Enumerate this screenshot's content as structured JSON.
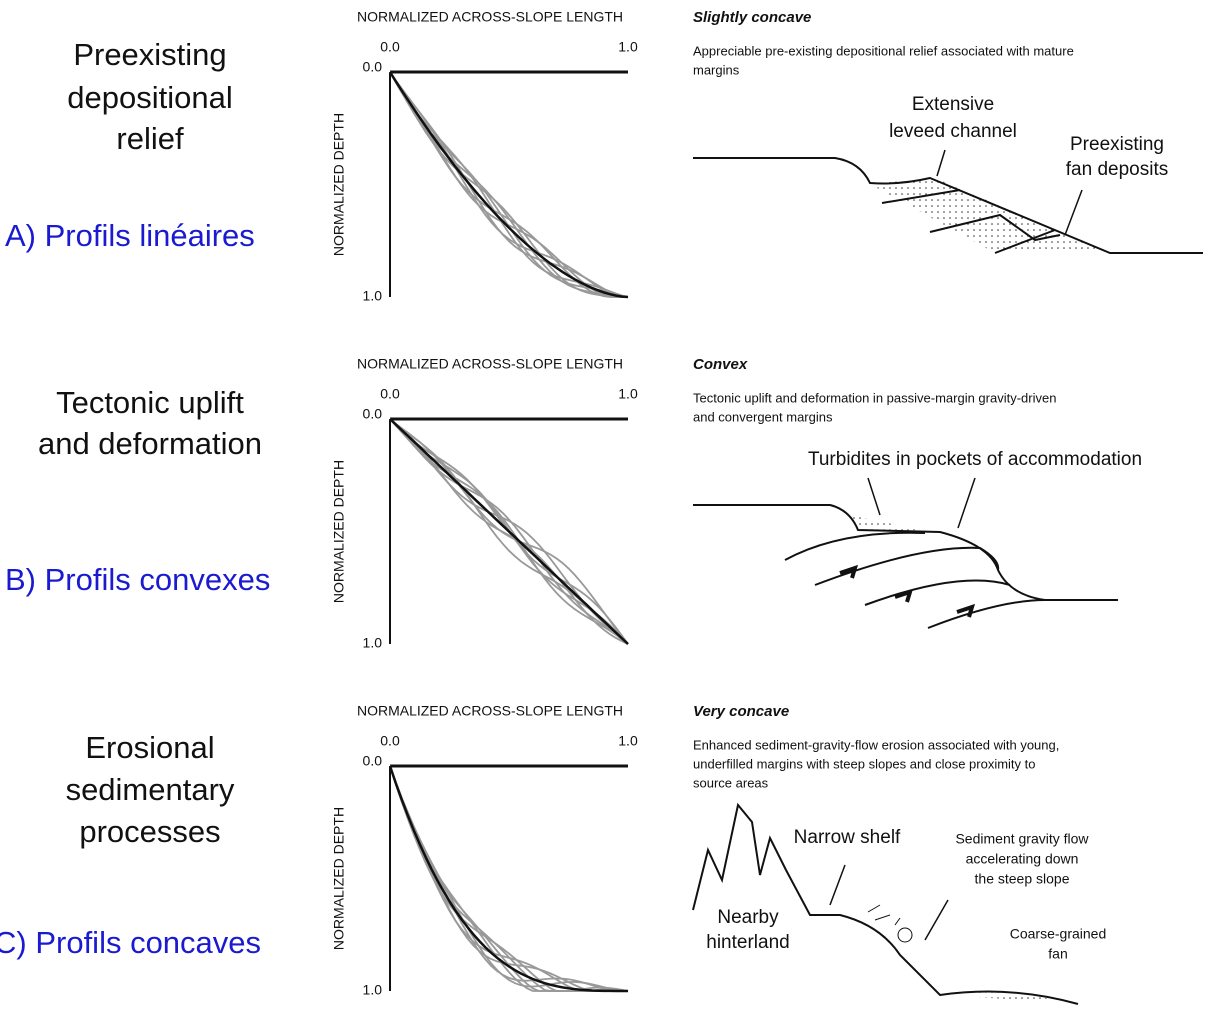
{
  "panels": [
    {
      "title_lines": [
        "Preexisting",
        "depositional",
        "relief"
      ],
      "label": "A) Profils linéaires",
      "chart": {
        "x_axis_title": "NORMALIZED ACROSS-SLOPE LENGTH",
        "x_ticks": [
          "0.0",
          "1.0"
        ],
        "y_axis_title": "NORMALIZED DEPTH",
        "y_ticks": [
          "0.0",
          "1.0"
        ]
      },
      "profile_type": "Slightly concave",
      "description": [
        "Appreciable pre-existing depositional relief associated with mature",
        "margins"
      ],
      "annotations": [
        {
          "lines": [
            "Extensive",
            "leveed channel"
          ]
        },
        {
          "lines": [
            "Preexisting",
            "fan deposits"
          ]
        }
      ]
    },
    {
      "title_lines": [
        "Tectonic uplift",
        "and deformation"
      ],
      "label": "B) Profils convexes",
      "chart": {
        "x_axis_title": "NORMALIZED ACROSS-SLOPE LENGTH",
        "x_ticks": [
          "0.0",
          "1.0"
        ],
        "y_axis_title": "NORMALIZED DEPTH",
        "y_ticks": [
          "0.0",
          "1.0"
        ]
      },
      "profile_type": "Convex",
      "description": [
        "Tectonic uplift and deformation in passive-margin gravity-driven",
        "and convergent margins"
      ],
      "annotations": [
        {
          "lines": [
            "Turbidites in pockets of accommodation"
          ]
        }
      ]
    },
    {
      "title_lines": [
        "Erosional",
        "sedimentary",
        "processes"
      ],
      "label": "C) Profils concaves",
      "chart": {
        "x_axis_title": "NORMALIZED ACROSS-SLOPE LENGTH",
        "x_ticks": [
          "0.0",
          "1.0"
        ],
        "y_axis_title": "NORMALIZED DEPTH",
        "y_ticks": [
          "0.0",
          "1.0"
        ]
      },
      "profile_type": "Very concave",
      "description": [
        "Enhanced sediment-gravity-flow erosion associated with young,",
        "underfilled margins with steep slopes and close proximity to",
        "source areas"
      ],
      "annotations": [
        {
          "lines": [
            "Narrow shelf"
          ]
        },
        {
          "lines": [
            "Nearby",
            "hinterland"
          ]
        },
        {
          "lines": [
            "Sediment gravity flow",
            "accelerating down",
            "the steep slope"
          ]
        },
        {
          "lines": [
            "Coarse-grained",
            "fan"
          ]
        }
      ]
    }
  ]
}
